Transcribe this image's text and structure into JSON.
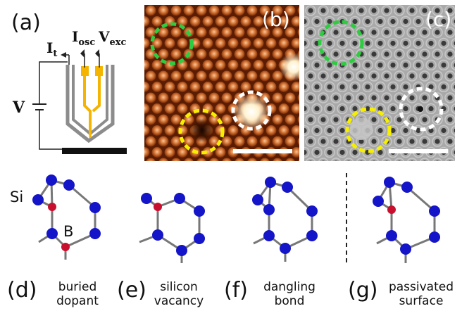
{
  "panel_a": {
    "label": "(a)",
    "I_t": "I",
    "I_t_sub": "t",
    "I_osc": "I",
    "I_osc_sub": "osc",
    "V_exc": "V",
    "V_exc_sub": "exc",
    "V": "V"
  },
  "panel_b": {
    "label": "(b)"
  },
  "panel_c": {
    "label": "(c)"
  },
  "atom_labels": {
    "si": "Si",
    "b": "B"
  },
  "captions": [
    {
      "letter": "(d)",
      "line1": "buried",
      "line2": "dopant"
    },
    {
      "letter": "(e)",
      "line1": "silicon",
      "line2": "vacancy"
    },
    {
      "letter": "(f)",
      "line1": "dangling",
      "line2": "bond"
    },
    {
      "letter": "(g)",
      "line1": "passivated",
      "line2": "surface"
    }
  ],
  "colors": {
    "si_atom": "#1414c8",
    "b_atom": "#c8102e",
    "bond": "#777777",
    "tip_body": "#f4b400",
    "circle_green": "#2ecc40",
    "circle_yellow": "#f6f000",
    "circle_white": "#ffffff"
  }
}
